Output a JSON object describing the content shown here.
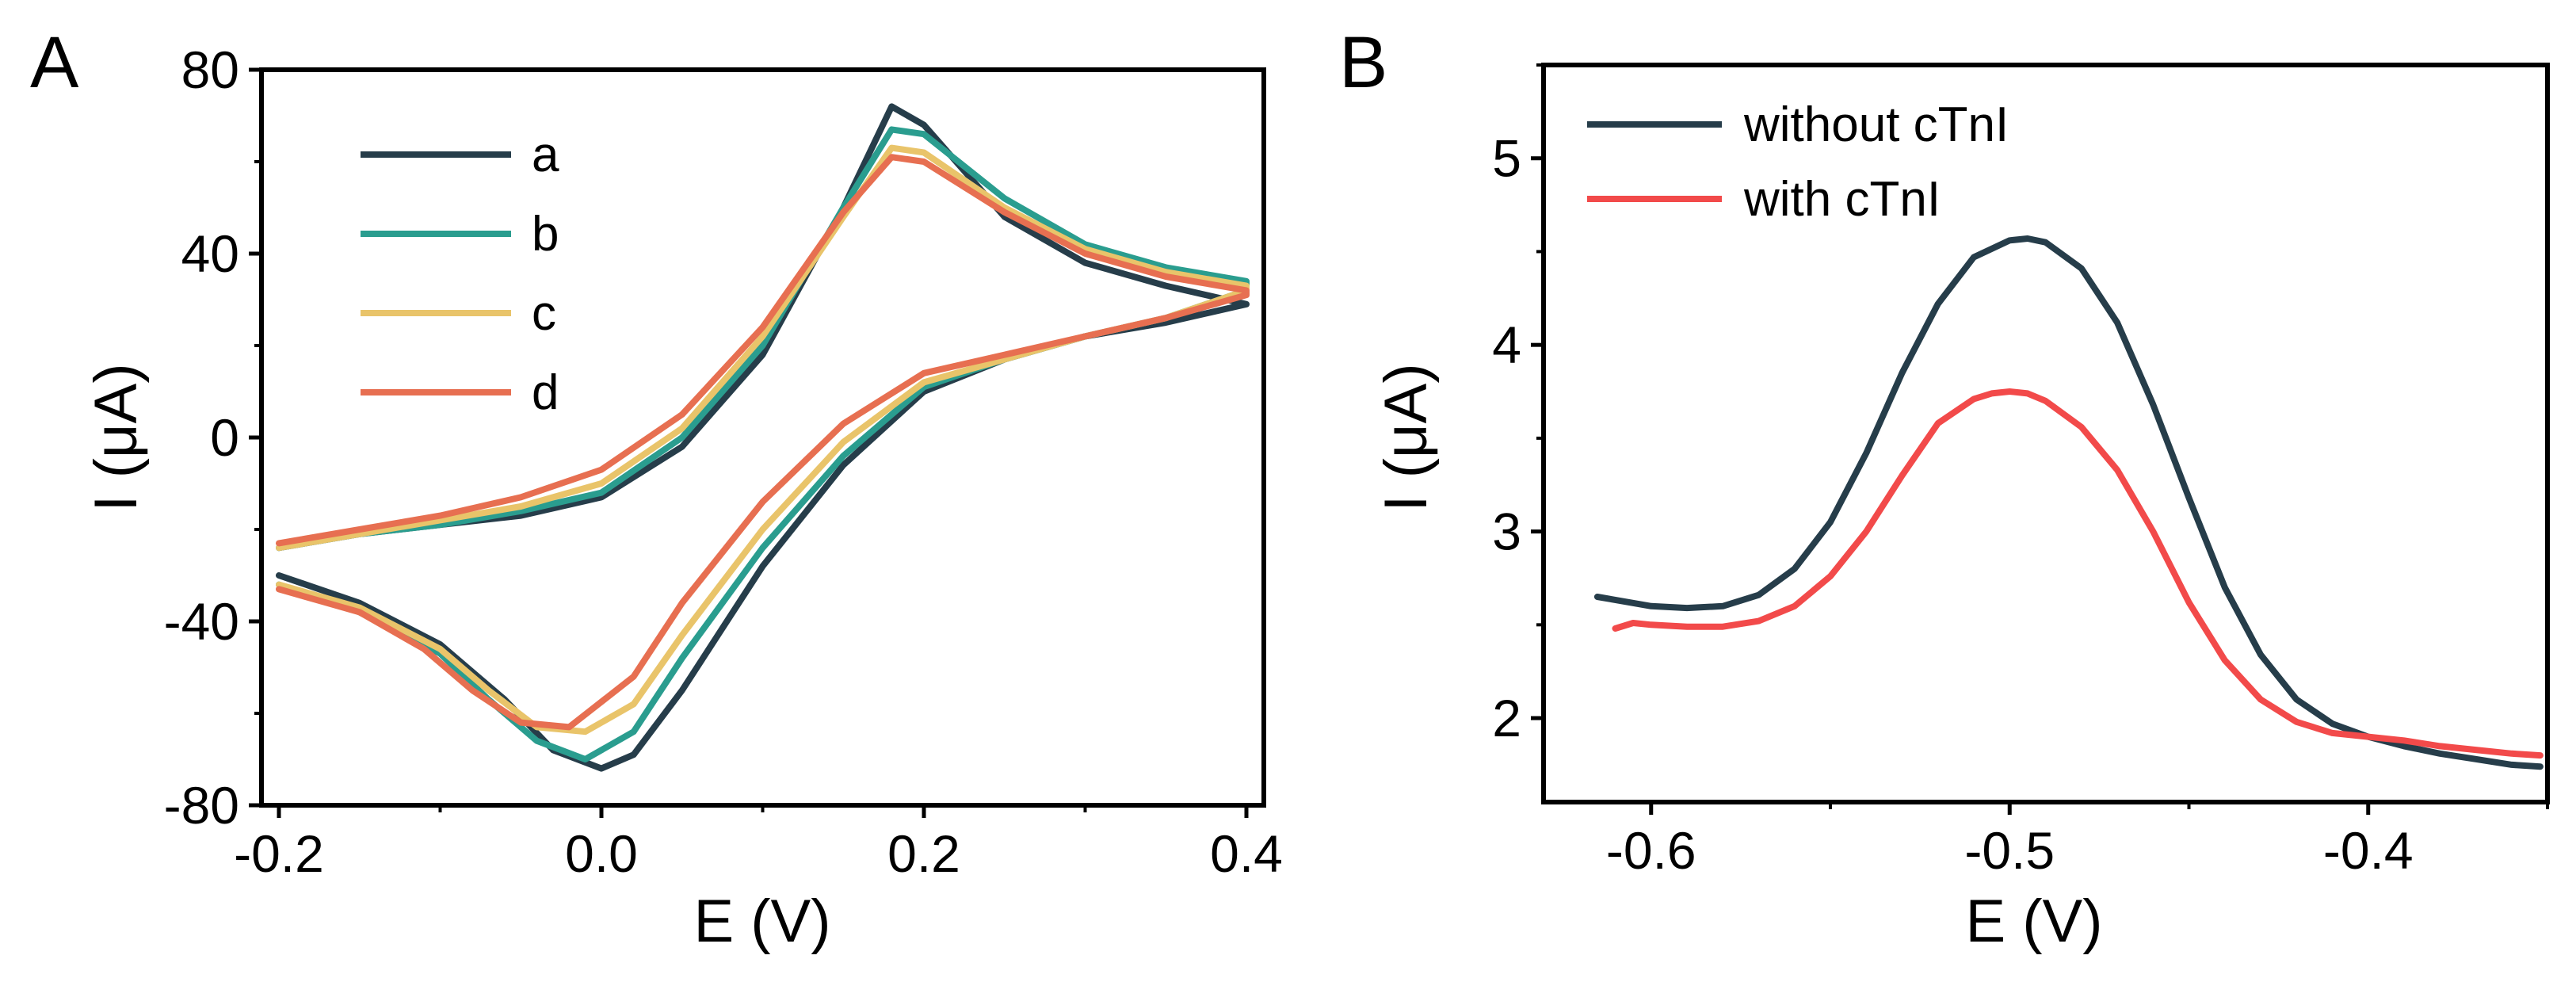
{
  "chart_data": [
    {
      "panel_label": "A",
      "type": "line",
      "xlabel": "E (V)",
      "ylabel": "I (μA)",
      "xlim": [
        -0.2,
        0.4
      ],
      "ylim": [
        -80,
        80
      ],
      "xticks": [
        -0.2,
        0.0,
        0.2,
        0.4
      ],
      "xtick_labels": [
        "-0.2",
        "0.0",
        "0.2",
        "0.4"
      ],
      "yticks": [
        80,
        40,
        0,
        -40,
        -80
      ],
      "ytick_labels": [
        "80",
        "40",
        "0",
        "-40",
        "-80"
      ],
      "legend": "top-left",
      "grid": false,
      "series": [
        {
          "name": "a",
          "color": "#263D4A",
          "points": [
            [
              -0.2,
              -24
            ],
            [
              -0.15,
              -21
            ],
            [
              -0.1,
              -19
            ],
            [
              -0.05,
              -17
            ],
            [
              0.0,
              -13
            ],
            [
              0.05,
              -2
            ],
            [
              0.1,
              18
            ],
            [
              0.15,
              50
            ],
            [
              0.18,
              72
            ],
            [
              0.2,
              68
            ],
            [
              0.25,
              48
            ],
            [
              0.3,
              38
            ],
            [
              0.35,
              33
            ],
            [
              0.4,
              29
            ],
            [
              0.4,
              29
            ],
            [
              0.35,
              25
            ],
            [
              0.3,
              22
            ],
            [
              0.25,
              17
            ],
            [
              0.2,
              10
            ],
            [
              0.15,
              -6
            ],
            [
              0.1,
              -28
            ],
            [
              0.05,
              -55
            ],
            [
              0.02,
              -69
            ],
            [
              0.0,
              -72
            ],
            [
              -0.03,
              -68
            ],
            [
              -0.06,
              -57
            ],
            [
              -0.1,
              -45
            ],
            [
              -0.15,
              -36
            ],
            [
              -0.2,
              -30
            ]
          ]
        },
        {
          "name": "b",
          "color": "#2A9D8F",
          "points": [
            [
              -0.2,
              -24
            ],
            [
              -0.15,
              -21
            ],
            [
              -0.1,
              -19
            ],
            [
              -0.05,
              -16
            ],
            [
              0.0,
              -12
            ],
            [
              0.05,
              0
            ],
            [
              0.1,
              20
            ],
            [
              0.15,
              50
            ],
            [
              0.18,
              67
            ],
            [
              0.2,
              66
            ],
            [
              0.25,
              52
            ],
            [
              0.3,
              42
            ],
            [
              0.35,
              37
            ],
            [
              0.4,
              34
            ],
            [
              0.4,
              32
            ],
            [
              0.35,
              26
            ],
            [
              0.3,
              22
            ],
            [
              0.25,
              17
            ],
            [
              0.2,
              11
            ],
            [
              0.15,
              -4
            ],
            [
              0.1,
              -24
            ],
            [
              0.05,
              -48
            ],
            [
              0.02,
              -64
            ],
            [
              -0.01,
              -70
            ],
            [
              -0.04,
              -66
            ],
            [
              -0.07,
              -57
            ],
            [
              -0.1,
              -47
            ],
            [
              -0.15,
              -38
            ],
            [
              -0.2,
              -32
            ]
          ]
        },
        {
          "name": "c",
          "color": "#E9C46A",
          "points": [
            [
              -0.2,
              -24
            ],
            [
              -0.15,
              -21
            ],
            [
              -0.1,
              -18
            ],
            [
              -0.05,
              -15
            ],
            [
              0.0,
              -10
            ],
            [
              0.05,
              2
            ],
            [
              0.1,
              22
            ],
            [
              0.15,
              48
            ],
            [
              0.18,
              63
            ],
            [
              0.2,
              62
            ],
            [
              0.25,
              50
            ],
            [
              0.3,
              41
            ],
            [
              0.35,
              36
            ],
            [
              0.4,
              33
            ],
            [
              0.4,
              32
            ],
            [
              0.35,
              26
            ],
            [
              0.3,
              22
            ],
            [
              0.25,
              17
            ],
            [
              0.2,
              12
            ],
            [
              0.15,
              -1
            ],
            [
              0.1,
              -20
            ],
            [
              0.05,
              -43
            ],
            [
              0.02,
              -58
            ],
            [
              -0.01,
              -64
            ],
            [
              -0.04,
              -63
            ],
            [
              -0.07,
              -55
            ],
            [
              -0.1,
              -46
            ],
            [
              -0.15,
              -37
            ],
            [
              -0.2,
              -32
            ]
          ]
        },
        {
          "name": "d",
          "color": "#E76F51",
          "points": [
            [
              -0.2,
              -23
            ],
            [
              -0.15,
              -20
            ],
            [
              -0.1,
              -17
            ],
            [
              -0.05,
              -13
            ],
            [
              0.0,
              -7
            ],
            [
              0.05,
              5
            ],
            [
              0.1,
              24
            ],
            [
              0.15,
              49
            ],
            [
              0.18,
              61
            ],
            [
              0.2,
              60
            ],
            [
              0.25,
              49
            ],
            [
              0.3,
              40
            ],
            [
              0.35,
              35
            ],
            [
              0.4,
              32
            ],
            [
              0.4,
              31
            ],
            [
              0.35,
              26
            ],
            [
              0.3,
              22
            ],
            [
              0.25,
              18
            ],
            [
              0.2,
              14
            ],
            [
              0.15,
              3
            ],
            [
              0.1,
              -14
            ],
            [
              0.05,
              -36
            ],
            [
              0.02,
              -52
            ],
            [
              -0.02,
              -63
            ],
            [
              -0.05,
              -62
            ],
            [
              -0.08,
              -55
            ],
            [
              -0.11,
              -46
            ],
            [
              -0.15,
              -38
            ],
            [
              -0.2,
              -33
            ]
          ]
        }
      ]
    },
    {
      "panel_label": "B",
      "type": "line",
      "xlabel": "E (V)",
      "ylabel": "I (μA)",
      "xlim": [
        -0.63,
        -0.35
      ],
      "ylim": [
        1.55,
        5.5
      ],
      "xticks": [
        -0.6,
        -0.5,
        -0.4
      ],
      "xtick_labels": [
        "-0.6",
        "-0.5",
        "-0.4"
      ],
      "yticks": [
        5,
        4,
        3,
        2
      ],
      "ytick_labels": [
        "5",
        "4",
        "3",
        "2"
      ],
      "legend": "top-left",
      "grid": false,
      "series": [
        {
          "name": "without cTnI",
          "color": "#263D4A",
          "points": [
            [
              -0.615,
              2.65
            ],
            [
              -0.6,
              2.6
            ],
            [
              -0.59,
              2.59
            ],
            [
              -0.58,
              2.6
            ],
            [
              -0.57,
              2.66
            ],
            [
              -0.56,
              2.8
            ],
            [
              -0.55,
              3.05
            ],
            [
              -0.54,
              3.42
            ],
            [
              -0.53,
              3.85
            ],
            [
              -0.52,
              4.22
            ],
            [
              -0.51,
              4.47
            ],
            [
              -0.5,
              4.56
            ],
            [
              -0.495,
              4.57
            ],
            [
              -0.49,
              4.55
            ],
            [
              -0.48,
              4.41
            ],
            [
              -0.47,
              4.12
            ],
            [
              -0.46,
              3.68
            ],
            [
              -0.45,
              3.18
            ],
            [
              -0.44,
              2.7
            ],
            [
              -0.43,
              2.34
            ],
            [
              -0.42,
              2.1
            ],
            [
              -0.41,
              1.97
            ],
            [
              -0.4,
              1.9
            ],
            [
              -0.39,
              1.85
            ],
            [
              -0.38,
              1.81
            ],
            [
              -0.37,
              1.78
            ],
            [
              -0.36,
              1.75
            ],
            [
              -0.352,
              1.74
            ]
          ]
        },
        {
          "name": "with cTnI",
          "color": "#F24A4A",
          "points": [
            [
              -0.61,
              2.48
            ],
            [
              -0.605,
              2.51
            ],
            [
              -0.6,
              2.5
            ],
            [
              -0.59,
              2.49
            ],
            [
              -0.58,
              2.49
            ],
            [
              -0.57,
              2.52
            ],
            [
              -0.56,
              2.6
            ],
            [
              -0.55,
              2.76
            ],
            [
              -0.54,
              3.0
            ],
            [
              -0.53,
              3.3
            ],
            [
              -0.52,
              3.58
            ],
            [
              -0.51,
              3.71
            ],
            [
              -0.505,
              3.74
            ],
            [
              -0.5,
              3.75
            ],
            [
              -0.495,
              3.74
            ],
            [
              -0.49,
              3.7
            ],
            [
              -0.48,
              3.56
            ],
            [
              -0.47,
              3.33
            ],
            [
              -0.46,
              3.0
            ],
            [
              -0.45,
              2.62
            ],
            [
              -0.44,
              2.31
            ],
            [
              -0.43,
              2.1
            ],
            [
              -0.42,
              1.98
            ],
            [
              -0.41,
              1.92
            ],
            [
              -0.4,
              1.9
            ],
            [
              -0.39,
              1.88
            ],
            [
              -0.38,
              1.85
            ],
            [
              -0.37,
              1.83
            ],
            [
              -0.36,
              1.81
            ],
            [
              -0.352,
              1.8
            ]
          ]
        }
      ]
    }
  ]
}
